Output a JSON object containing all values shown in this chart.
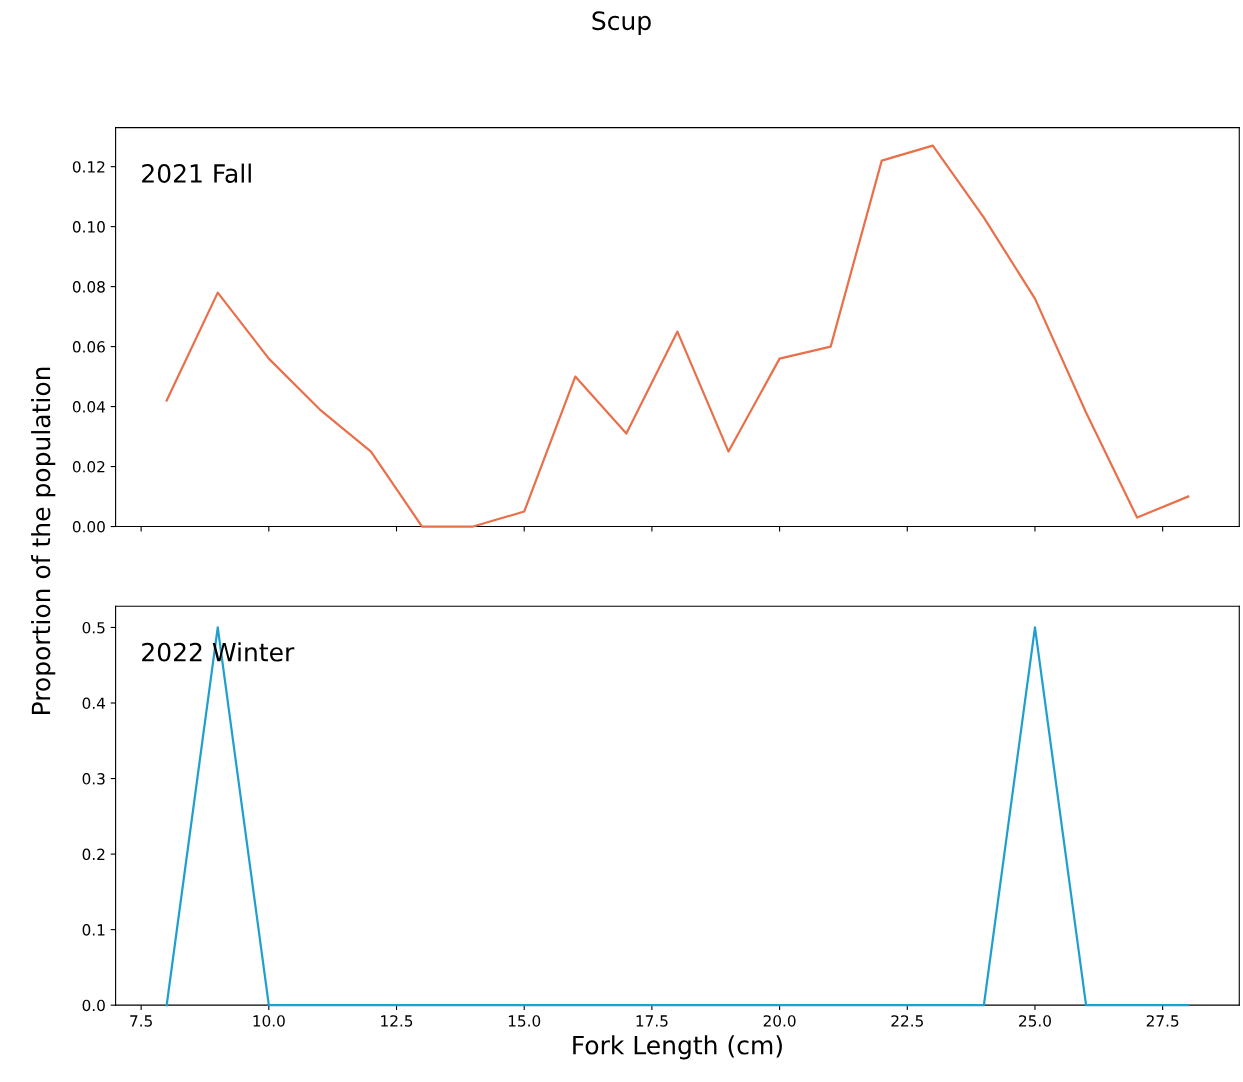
{
  "chart_data": [
    {
      "type": "line",
      "title": "Scup",
      "ylabel": "Proportion of the population",
      "annotations": [
        "2021 Fall"
      ],
      "x": [
        8,
        9,
        10,
        11,
        12,
        13,
        14,
        15,
        16,
        17,
        18,
        19,
        20,
        21,
        22,
        23,
        24,
        25,
        26,
        27,
        28
      ],
      "series": [
        {
          "color": "#e8704a",
          "values": [
            0.042,
            0.078,
            0.056,
            0.039,
            0.025,
            0.0,
            0.0,
            0.005,
            0.05,
            0.031,
            0.065,
            0.025,
            0.056,
            0.06,
            0.122,
            0.127,
            0.103,
            0.076,
            0.038,
            0.003,
            0.01
          ]
        }
      ],
      "xlim": [
        7,
        29
      ],
      "xticks": [
        7.5,
        10.0,
        12.5,
        15.0,
        17.5,
        20.0,
        22.5,
        25.0,
        27.5
      ],
      "ylim": [
        0,
        0.133
      ],
      "yticks": [
        {
          "value": 0,
          "label": "0.00"
        },
        {
          "value": 0.02,
          "label": "0.02"
        },
        {
          "value": 0.04,
          "label": "0.04"
        },
        {
          "value": 0.06,
          "label": "0.06"
        },
        {
          "value": 0.08,
          "label": "0.08"
        },
        {
          "value": 0.1,
          "label": "0.10"
        },
        {
          "value": 0.12,
          "label": "0.12"
        }
      ],
      "tick_labels": "y",
      "grid": false,
      "legend": false
    },
    {
      "type": "line",
      "xlabel": "Fork Length (cm)",
      "annotations": [
        "2022 Winter"
      ],
      "x": [
        8,
        9,
        10,
        11,
        12,
        13,
        14,
        15,
        16,
        17,
        18,
        19,
        20,
        21,
        22,
        23,
        24,
        25,
        26,
        27,
        28
      ],
      "series": [
        {
          "color": "#1f9fcf",
          "values": [
            0,
            0.5,
            0,
            0,
            0,
            0,
            0,
            0,
            0,
            0,
            0,
            0,
            0,
            0,
            0,
            0,
            0,
            0.5,
            0,
            0,
            0
          ]
        }
      ],
      "xlim": [
        7,
        29
      ],
      "xticks": [
        {
          "value": 7.5,
          "label": "7.5"
        },
        {
          "value": 10,
          "label": "10.0"
        },
        {
          "value": 12.5,
          "label": "12.5"
        },
        {
          "value": 15,
          "label": "15.0"
        },
        {
          "value": 17.5,
          "label": "17.5"
        },
        {
          "value": 20,
          "label": "20.0"
        },
        {
          "value": 22.5,
          "label": "22.5"
        },
        {
          "value": 25,
          "label": "25.0"
        },
        {
          "value": 27.5,
          "label": "27.5"
        }
      ],
      "ylim": [
        0,
        0.528
      ],
      "yticks": [
        {
          "value": 0,
          "label": "0.0"
        },
        0.1,
        0.2,
        0.3,
        0.4,
        0.5
      ],
      "grid": false,
      "legend": false
    }
  ]
}
